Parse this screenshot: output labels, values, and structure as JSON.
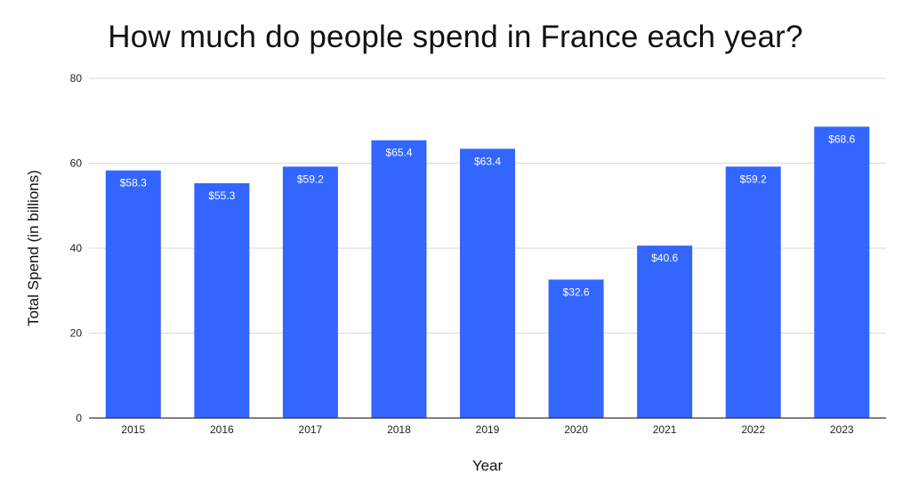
{
  "chart_data": {
    "type": "bar",
    "title": "How much do people spend in France each year?",
    "xlabel": "Year",
    "ylabel": "Total Spend (in billions)",
    "categories": [
      "2015",
      "2016",
      "2017",
      "2018",
      "2019",
      "2020",
      "2021",
      "2022",
      "2023"
    ],
    "values": [
      58.3,
      55.3,
      59.2,
      65.4,
      63.4,
      32.6,
      40.6,
      59.2,
      68.6
    ],
    "data_labels": [
      "$58.3",
      "$55.3",
      "$59.2",
      "$65.4",
      "$63.4",
      "$32.6",
      "$40.6",
      "$59.2",
      "$68.6"
    ],
    "ylim": [
      0,
      80
    ],
    "yticks": [
      0,
      20,
      40,
      60,
      80
    ],
    "grid": true,
    "legend": "none",
    "bar_color": "#3366ff",
    "gridline_color": "#d9d9d9",
    "axis_color": "#333333"
  }
}
